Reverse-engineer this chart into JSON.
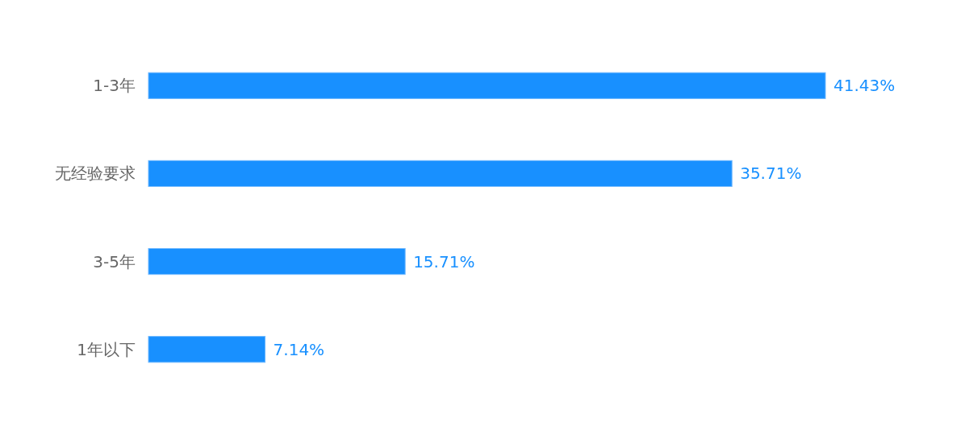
{
  "chart_data": {
    "type": "bar",
    "orientation": "horizontal",
    "categories": [
      "1-3年",
      "无经验要求",
      "3-5年",
      "1年以下"
    ],
    "values": [
      41.43,
      35.71,
      15.71,
      7.14
    ],
    "value_labels": [
      "41.43%",
      "35.71%",
      "15.71%",
      "7.14%"
    ],
    "color": "#1890ff"
  }
}
